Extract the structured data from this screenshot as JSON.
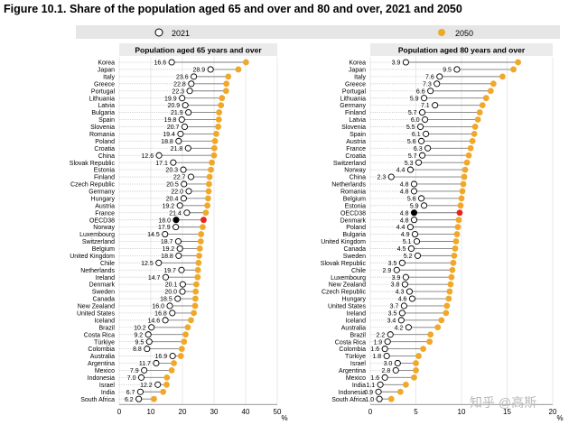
{
  "title": "Figure 10.1. Share of the population aged 65 and over and 80 and over, 2021 and 2050",
  "watermark": "知乎 @高斯",
  "colors": {
    "y2021": "#ffffff",
    "y2050": "#f0a82a",
    "oecd2021": "#000000",
    "oecd2050": "#e8241d",
    "legend_bg": "#e6e6e6",
    "panel_bg": "#ebebeb"
  },
  "chart_data": [
    {
      "type": "dot",
      "title": "Population aged 65 years and over",
      "unit_label": "%",
      "xlim": [
        0,
        50
      ],
      "xticks": [
        0,
        10,
        20,
        30,
        40,
        50
      ],
      "legend": [
        "2021",
        "2050"
      ],
      "categories": [
        "Korea",
        "Japan",
        "Italy",
        "Greece",
        "Portugal",
        "Lithuania",
        "Latvia",
        "Bulgaria",
        "Spain",
        "Slovenia",
        "Romania",
        "Poland",
        "Croatia",
        "China",
        "Slovak Republic",
        "Estonia",
        "Finland",
        "Czech Republic",
        "Germany",
        "Hungary",
        "Austria",
        "France",
        "OECD38",
        "Norway",
        "Luxembourg",
        "Switzerland",
        "Belgium",
        "United Kingdom",
        "Chile",
        "Netherlands",
        "Ireland",
        "Denmark",
        "Sweden",
        "Canada",
        "New Zealand",
        "United States",
        "Iceland",
        "Brazil",
        "Costa Rica",
        "Türkiye",
        "Colombia",
        "Australia",
        "Argentina",
        "Mexico",
        "Indonesia",
        "Israel",
        "India",
        "South Africa"
      ],
      "series": [
        {
          "name": "2021",
          "values": [
            16.6,
            28.9,
            23.6,
            22.8,
            22.3,
            19.9,
            20.9,
            21.9,
            19.8,
            20.7,
            19.4,
            18.8,
            21.8,
            12.6,
            17.1,
            20.3,
            22.7,
            20.5,
            22.0,
            20.4,
            19.2,
            21.4,
            18.0,
            17.9,
            14.5,
            18.7,
            19.2,
            18.8,
            12.5,
            19.7,
            14.7,
            20.1,
            20.0,
            18.5,
            16.0,
            16.8,
            14.6,
            10.2,
            9.2,
            9.5,
            8.8,
            16.9,
            11.7,
            7.9,
            7.0,
            12.2,
            6.7,
            6.2
          ]
        },
        {
          "name": "2050",
          "values": [
            40.1,
            37.7,
            34.5,
            33.9,
            33.8,
            32.5,
            32.2,
            31.6,
            31.5,
            31.3,
            30.7,
            30.3,
            30.1,
            30.0,
            29.3,
            29.0,
            28.6,
            28.4,
            28.3,
            28.1,
            27.9,
            27.4,
            26.7,
            26.4,
            25.9,
            25.8,
            25.5,
            25.3,
            25.1,
            24.9,
            24.8,
            24.4,
            24.2,
            24.1,
            24.0,
            23.6,
            22.7,
            21.7,
            21.0,
            20.5,
            19.8,
            19.5,
            17.3,
            16.6,
            15.1,
            15.0,
            13.9,
            11.0
          ]
        }
      ],
      "oecd_index": 22
    },
    {
      "type": "dot",
      "title": "Population aged 80 years and over",
      "unit_label": "%",
      "xlim": [
        0,
        20
      ],
      "xticks": [
        0,
        5,
        10,
        15,
        20
      ],
      "categories": [
        "Korea",
        "Japan",
        "Italy",
        "Greece",
        "Portugal",
        "Lithuania",
        "Germany",
        "Finland",
        "Latvia",
        "Slovenia",
        "Spain",
        "Austria",
        "France",
        "Croatia",
        "Switzerland",
        "Norway",
        "China",
        "Netherlands",
        "Romania",
        "Belgium",
        "Estonia",
        "OECD38",
        "Denmark",
        "Poland",
        "Bulgaria",
        "United Kingdom",
        "Canada",
        "Sweden",
        "Slovak Republic",
        "Chile",
        "Luxembourg",
        "New Zealand",
        "Czech Republic",
        "Hungary",
        "United States",
        "Ireland",
        "Iceland",
        "Australia",
        "Brazil",
        "Costa Rica",
        "Colombia",
        "Türkiye",
        "Israel",
        "Argentina",
        "Mexico",
        "India",
        "Indonesia",
        "South Africa"
      ],
      "series": [
        {
          "name": "2021",
          "values": [
            3.9,
            9.5,
            7.6,
            7.3,
            6.6,
            5.9,
            7.1,
            5.7,
            6.0,
            5.5,
            6.1,
            5.6,
            6.3,
            5.7,
            5.3,
            4.4,
            2.3,
            4.8,
            4.8,
            5.6,
            5.9,
            4.8,
            4.8,
            4.4,
            4.9,
            5.1,
            4.5,
            5.2,
            3.5,
            2.9,
            3.9,
            3.8,
            4.3,
            4.6,
            3.7,
            3.5,
            3.4,
            4.2,
            2.2,
            1.9,
            1.6,
            1.8,
            3.0,
            2.8,
            1.6,
            1.1,
            0.9,
            1.0
          ]
        },
        {
          "name": "2050",
          "values": [
            16.2,
            15.7,
            14.5,
            13.5,
            13.2,
            12.7,
            12.3,
            12.0,
            11.8,
            11.5,
            11.4,
            11.2,
            11.0,
            10.8,
            10.6,
            10.4,
            10.3,
            10.2,
            10.1,
            10.0,
            9.9,
            9.8,
            9.7,
            9.6,
            9.5,
            9.4,
            9.3,
            9.2,
            9.1,
            9.0,
            8.9,
            8.8,
            8.7,
            8.6,
            8.4,
            8.3,
            7.8,
            7.4,
            6.6,
            6.5,
            5.8,
            5.3,
            5.0,
            5.0,
            4.8,
            3.9,
            3.3,
            2.3
          ]
        }
      ],
      "oecd_index": 21
    }
  ]
}
